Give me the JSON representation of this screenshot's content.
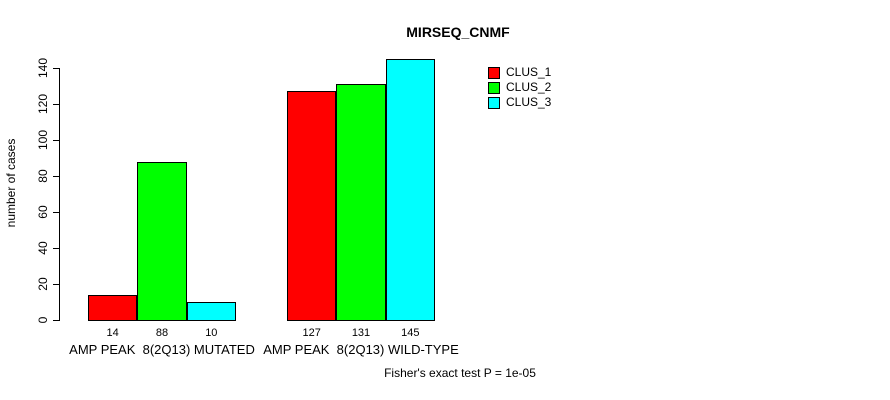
{
  "chart_data": {
    "type": "bar",
    "title": "MIRSEQ_CNMF",
    "ylabel": "number of cases",
    "ylim": [
      0,
      140
    ],
    "yticks": [
      0,
      20,
      40,
      60,
      80,
      100,
      120,
      140
    ],
    "grid": false,
    "legend_position": "top-right",
    "categories": [
      "AMP PEAK  8(2Q13) MUTATED",
      "AMP PEAK  8(2Q13) WILD-TYPE"
    ],
    "series": [
      {
        "name": "CLUS_1",
        "color": "#ff0000",
        "values": [
          14,
          127
        ]
      },
      {
        "name": "CLUS_2",
        "color": "#00ff00",
        "values": [
          88,
          131
        ]
      },
      {
        "name": "CLUS_3",
        "color": "#00ffff",
        "values": [
          10,
          145
        ]
      }
    ],
    "annotation": "Fisher's exact test P = 1e-05"
  },
  "colors": {
    "background": "#ffffff",
    "axis": "#000000",
    "bar_border": "#000000",
    "text": "#000000"
  }
}
